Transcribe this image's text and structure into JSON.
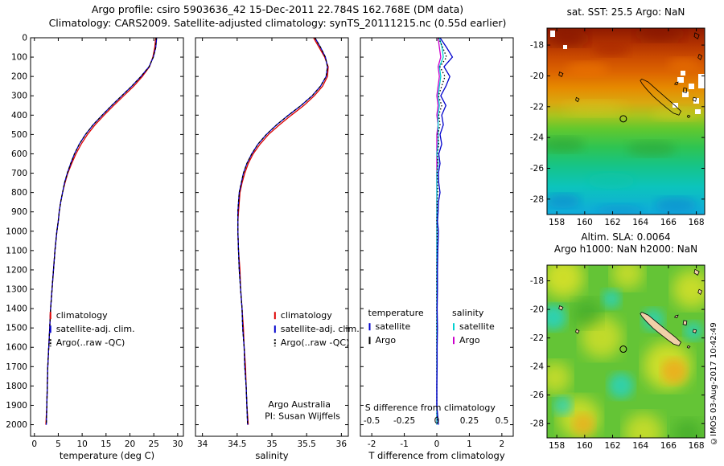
{
  "header": {
    "title_line1": "Argo profile: csiro 5903636_42 15-Dec-2011 22.784S 162.768E (DM data)",
    "title_line2": "Climatology: CARS2009. Satellite-adjusted climatology: synTS_20111215.nc (0.55d earlier)"
  },
  "copyright": "©IMOS 03-Aug-2017 10:42:49",
  "colors": {
    "climatology": "#dd0000",
    "satellite_adj": "#0000cc",
    "argo": "#000000",
    "sal_satellite": "#00d0d0",
    "sal_argo": "#cc00cc"
  },
  "maps": {
    "sst": {
      "title": "sat. SST: 25.5 Argo: NaN",
      "xticks": [
        158,
        160,
        162,
        164,
        166,
        168
      ],
      "yticks": [
        -18,
        -20,
        -22,
        -24,
        -26,
        -28
      ],
      "lon_range": [
        157.3,
        168.6
      ],
      "lat_range": [
        -16.9,
        -29.0
      ],
      "float_lon": 162.768,
      "float_lat": -22.784
    },
    "sla": {
      "title_line1": "Altim. SLA: 0.0064",
      "title_line2": "Argo h1000: NaN h2000: NaN",
      "xticks": [
        158,
        160,
        162,
        164,
        166,
        168
      ],
      "yticks": [
        -18,
        -20,
        -22,
        -24,
        -26,
        -28
      ],
      "lon_range": [
        157.3,
        168.6
      ],
      "lat_range": [
        -16.9,
        -29.0
      ],
      "float_lon": 162.768,
      "float_lat": -22.784
    }
  },
  "chart_data": [
    {
      "id": "temperature",
      "type": "line",
      "xlabel": "temperature (deg C)",
      "xlim": [
        -0.8,
        31.2
      ],
      "xticks": [
        0,
        5,
        10,
        15,
        20,
        25,
        30
      ],
      "ylim": [
        0,
        2060
      ],
      "yticks": [
        0,
        100,
        200,
        300,
        400,
        500,
        600,
        700,
        800,
        900,
        1000,
        1100,
        1200,
        1300,
        1400,
        1500,
        1600,
        1700,
        1800,
        1900,
        2000
      ],
      "show_ytick_labels": true,
      "depth": [
        0,
        50,
        100,
        150,
        200,
        250,
        300,
        350,
        400,
        450,
        500,
        550,
        600,
        650,
        700,
        750,
        800,
        850,
        900,
        950,
        1000,
        1100,
        1200,
        1300,
        1400,
        1500,
        1600,
        1700,
        1800,
        1900,
        2000
      ],
      "series": [
        {
          "name": "climatology",
          "color": "#dd0000",
          "values": [
            25.4,
            25.2,
            24.8,
            24.1,
            22.6,
            20.8,
            18.7,
            16.6,
            14.6,
            12.7,
            11.1,
            9.8,
            8.7,
            7.8,
            7.0,
            6.4,
            5.9,
            5.5,
            5.2,
            5.0,
            4.7,
            4.3,
            4.0,
            3.7,
            3.4,
            3.2,
            3.0,
            2.8,
            2.7,
            2.6,
            2.4
          ]
        },
        {
          "name": "satellite-adj. clim.",
          "color": "#0000cc",
          "values": [
            25.6,
            25.4,
            24.9,
            24.0,
            22.3,
            20.4,
            18.3,
            16.2,
            14.2,
            12.3,
            10.7,
            9.4,
            8.4,
            7.6,
            6.9,
            6.3,
            5.9,
            5.5,
            5.2,
            5.0,
            4.7,
            4.3,
            4.0,
            3.7,
            3.4,
            3.2,
            3.0,
            2.8,
            2.7,
            2.6,
            2.5
          ]
        },
        {
          "name": "Argo(..raw -QC)",
          "color": "#000000",
          "dash": "3 3",
          "values": [
            25.5,
            25.4,
            24.9,
            24.0,
            22.3,
            20.4,
            18.3,
            16.2,
            14.2,
            12.3,
            10.7,
            9.4,
            8.4,
            7.6,
            6.9,
            6.3,
            5.9,
            5.5,
            5.2,
            5.0,
            4.7,
            4.3,
            4.0,
            3.7,
            3.4,
            3.2,
            3.0,
            2.8,
            2.7,
            2.6,
            2.5
          ]
        }
      ],
      "legend": {
        "fx": 0.13,
        "fy": 0.698,
        "items": [
          {
            "label": "climatology",
            "color": "#dd0000"
          },
          {
            "label": "satellite-adj. clim.",
            "color": "#0000cc"
          },
          {
            "label": "Argo(..raw -QC)",
            "color": "#000000",
            "dash": true
          }
        ]
      }
    },
    {
      "id": "salinity",
      "type": "line",
      "xlabel": "salinity",
      "xlim": [
        33.9,
        36.1
      ],
      "xticks": [
        34,
        34.5,
        35,
        35.5,
        36
      ],
      "ylim": [
        0,
        2060
      ],
      "yticks": [
        0,
        100,
        200,
        300,
        400,
        500,
        600,
        700,
        800,
        900,
        1000,
        1100,
        1200,
        1300,
        1400,
        1500,
        1600,
        1700,
        1800,
        1900,
        2000
      ],
      "show_ytick_labels": false,
      "depth": [
        0,
        50,
        100,
        150,
        200,
        250,
        300,
        350,
        400,
        450,
        500,
        550,
        600,
        650,
        700,
        750,
        800,
        850,
        900,
        950,
        1000,
        1100,
        1200,
        1300,
        1400,
        1500,
        1600,
        1700,
        1800,
        1900,
        2000
      ],
      "series": [
        {
          "name": "climatology",
          "color": "#dd0000",
          "values": [
            35.6,
            35.68,
            35.76,
            35.81,
            35.8,
            35.73,
            35.61,
            35.46,
            35.28,
            35.11,
            34.95,
            34.83,
            34.73,
            34.66,
            34.61,
            34.57,
            34.54,
            34.53,
            34.52,
            34.51,
            34.51,
            34.52,
            34.54,
            34.55,
            34.57,
            34.59,
            34.6,
            34.62,
            34.63,
            34.64,
            34.66
          ]
        },
        {
          "name": "satellite-adj. clim.",
          "color": "#0000cc",
          "values": [
            35.62,
            35.7,
            35.77,
            35.8,
            35.78,
            35.7,
            35.58,
            35.42,
            35.24,
            35.07,
            34.92,
            34.8,
            34.71,
            34.64,
            34.59,
            34.56,
            34.53,
            34.52,
            34.51,
            34.51,
            34.51,
            34.52,
            34.53,
            34.55,
            34.57,
            34.58,
            34.6,
            34.61,
            34.63,
            34.64,
            34.65
          ]
        },
        {
          "name": "Argo(..raw -QC)",
          "color": "#000000",
          "dash": "3 3",
          "values": [
            35.62,
            35.7,
            35.77,
            35.8,
            35.78,
            35.7,
            35.58,
            35.42,
            35.24,
            35.07,
            34.92,
            34.8,
            34.71,
            34.64,
            34.59,
            34.56,
            34.53,
            34.52,
            34.51,
            34.51,
            34.51,
            34.52,
            34.53,
            34.55,
            34.57,
            34.58,
            34.6,
            34.61,
            34.63,
            34.64,
            34.65
          ]
        }
      ],
      "legend": {
        "fx": 0.52,
        "fy": 0.698,
        "items": [
          {
            "label": "climatology",
            "color": "#dd0000"
          },
          {
            "label": "satellite-adj. clim.",
            "color": "#0000cc"
          },
          {
            "label": "Argo(..raw -QC)",
            "color": "#000000",
            "dash": true
          }
        ]
      },
      "annotations": [
        {
          "text": "Argo Australia",
          "fx": 0.68,
          "fy": 0.927
        },
        {
          "text": "PI: Susan Wijffels",
          "fx": 0.7,
          "fy": 0.957
        }
      ]
    },
    {
      "id": "difference",
      "type": "line",
      "xlabel": "T difference from climatology",
      "xlim": [
        -2.35,
        2.35
      ],
      "xticks": [
        -2,
        -1,
        0,
        1,
        2
      ],
      "ylim": [
        0,
        2060
      ],
      "yticks": [
        0,
        100,
        200,
        300,
        400,
        500,
        600,
        700,
        800,
        900,
        1000,
        1100,
        1200,
        1300,
        1400,
        1500,
        1600,
        1700,
        1800,
        1900,
        2000
      ],
      "show_ytick_labels": false,
      "depth": [
        0,
        50,
        100,
        150,
        200,
        250,
        300,
        350,
        400,
        450,
        500,
        550,
        600,
        650,
        700,
        750,
        800,
        850,
        900,
        950,
        1000,
        1100,
        1200,
        1300,
        1400,
        1500,
        1600,
        1700,
        1800,
        1900,
        2000
      ],
      "s_axis": {
        "label": "S difference from climatology",
        "ticks": [
          -0.5,
          -0.25,
          0,
          0.25,
          0.5
        ],
        "xlim": [
          -0.587,
          0.587
        ],
        "label_fy": 0.935,
        "ticks_fy": 0.968
      },
      "series": [
        {
          "name": "S Argo",
          "color": "#cc00cc",
          "axis": "S",
          "values": [
            0.01,
            0.02,
            0.03,
            0.01,
            0.02,
            0.01,
            0.0,
            0.01,
            0.0,
            0.01,
            0.0,
            0.0,
            0.0,
            0.0,
            0.0,
            0.0,
            0.0,
            0.0,
            0.0,
            0.0,
            0.0,
            0.0,
            0.0,
            0.0,
            0.0,
            0.0,
            0.0,
            0.0,
            0.0,
            0.0,
            0.0
          ]
        },
        {
          "name": "S satellite",
          "color": "#00d0d0",
          "axis": "S",
          "values": [
            0.02,
            0.04,
            0.05,
            0.02,
            0.03,
            0.02,
            0.01,
            0.02,
            0.01,
            0.01,
            0.01,
            0.01,
            0.0,
            0.01,
            0.0,
            0.0,
            0.0,
            0.0,
            0.0,
            0.0,
            0.0,
            0.0,
            0.0,
            0.0,
            0.0,
            0.0,
            0.0,
            0.0,
            0.0,
            0.0,
            0.0
          ]
        },
        {
          "name": "T Argo",
          "color": "#000000",
          "dash": "1.5 2.5",
          "values": [
            0.05,
            0.18,
            0.3,
            0.1,
            0.25,
            0.15,
            0.05,
            0.15,
            0.06,
            0.1,
            0.03,
            0.06,
            0.02,
            0.03,
            0.01,
            0.02,
            0.03,
            0.01,
            0.01,
            0.0,
            0.01,
            0.01,
            0.0,
            0.0,
            0.0,
            0.0,
            0.0,
            0.0,
            0.0,
            0.0,
            0.02
          ]
        },
        {
          "name": "T satellite",
          "color": "#0000cc",
          "values": [
            0.1,
            0.3,
            0.48,
            0.22,
            0.4,
            0.28,
            0.12,
            0.28,
            0.15,
            0.2,
            0.1,
            0.15,
            0.06,
            0.1,
            0.05,
            0.06,
            0.1,
            0.05,
            0.04,
            0.02,
            0.05,
            0.03,
            0.02,
            0.02,
            0.01,
            0.02,
            0.01,
            0.01,
            0.0,
            0.0,
            0.05
          ]
        }
      ],
      "legend2": {
        "fx1": 0.05,
        "fx2": 0.6,
        "fy": 0.698,
        "col1_header": "temperature",
        "col2_header": "salinity",
        "rows": [
          {
            "label": "satellite",
            "c1": "#0000cc",
            "c2": "#00d0d0"
          },
          {
            "label": "Argo",
            "c1": "#000000",
            "c2": "#cc00cc"
          }
        ]
      }
    }
  ]
}
